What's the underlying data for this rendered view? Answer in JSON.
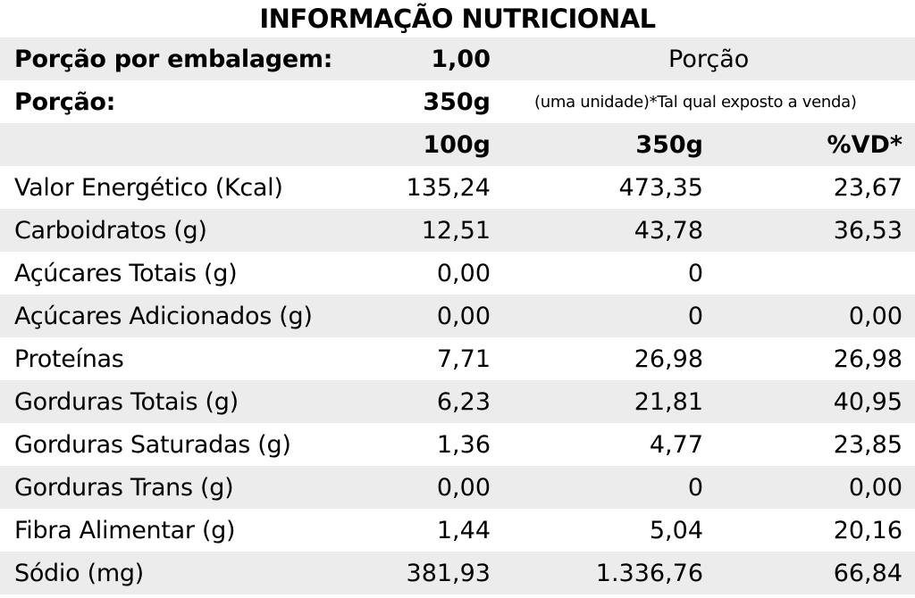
{
  "title": "INFORMAÇÃO NUTRICIONAL",
  "header": {
    "servings_label": "Porção por embalagem:",
    "servings_value": "1,00",
    "portion_word": "Porção",
    "portion_label": "Porção:",
    "portion_value": "350g",
    "portion_note": "(uma unidade)*Tal qual exposto a venda)",
    "col_100g": "100g",
    "col_350g": "350g",
    "col_vd": "%VD*"
  },
  "rows": [
    {
      "name": "Valor Energético (Kcal)",
      "per100": "135,24",
      "per350": "473,35",
      "vd": "23,67"
    },
    {
      "name": "Carboidratos (g)",
      "per100": "12,51",
      "per350": "43,78",
      "vd": "36,53"
    },
    {
      "name": "Açúcares Totais (g)",
      "per100": "0,00",
      "per350": "0",
      "vd": ""
    },
    {
      "name": "Açúcares Adicionados (g)",
      "per100": "0,00",
      "per350": "0",
      "vd": "0,00"
    },
    {
      "name": "Proteínas",
      "per100": "7,71",
      "per350": "26,98",
      "vd": "26,98"
    },
    {
      "name": "Gorduras Totais (g)",
      "per100": "6,23",
      "per350": "21,81",
      "vd": "40,95"
    },
    {
      "name": "Gorduras Saturadas (g)",
      "per100": "1,36",
      "per350": "4,77",
      "vd": "23,85"
    },
    {
      "name": "Gorduras Trans (g)",
      "per100": "0,00",
      "per350": "0",
      "vd": "0,00"
    },
    {
      "name": "Fibra Alimentar (g)",
      "per100": "1,44",
      "per350": "5,04",
      "vd": "20,16"
    },
    {
      "name": "Sódio (mg)",
      "per100": "381,93",
      "per350": "1.336,76",
      "vd": "66,84"
    }
  ],
  "colors": {
    "shade": "#ececec",
    "text": "#000000",
    "background": "#ffffff"
  }
}
